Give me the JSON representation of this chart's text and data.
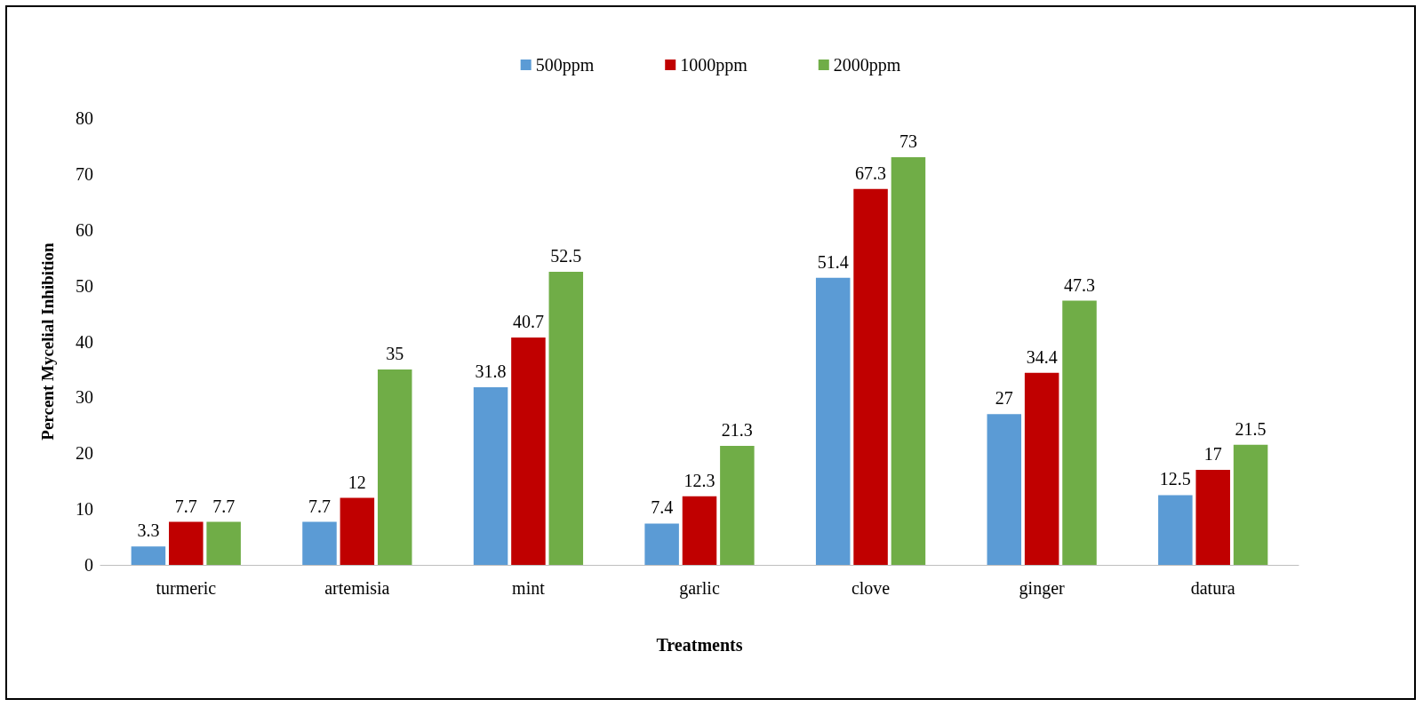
{
  "chart_data": {
    "type": "bar",
    "xlabel": "Treatments",
    "ylabel": "Percent Mycelial Inhibition",
    "categories": [
      "turmeric",
      "artemisia",
      "mint",
      "garlic",
      "clove",
      "ginger",
      "datura"
    ],
    "series": [
      {
        "name": "500ppm",
        "color": "#5b9bd5",
        "values": [
          3.3,
          7.7,
          31.8,
          7.4,
          51.4,
          27,
          12.5
        ]
      },
      {
        "name": "1000ppm",
        "color": "#c00000",
        "values": [
          7.7,
          12,
          40.7,
          12.3,
          67.3,
          34.4,
          17
        ]
      },
      {
        "name": "2000ppm",
        "color": "#70ad47",
        "values": [
          7.7,
          35,
          52.5,
          21.3,
          73,
          47.3,
          21.5
        ]
      }
    ],
    "ylim": [
      0,
      80
    ],
    "yticks": [
      0,
      10,
      20,
      30,
      40,
      50,
      60,
      70,
      80
    ],
    "grid": false,
    "legend": "top",
    "data_labels": true
  }
}
